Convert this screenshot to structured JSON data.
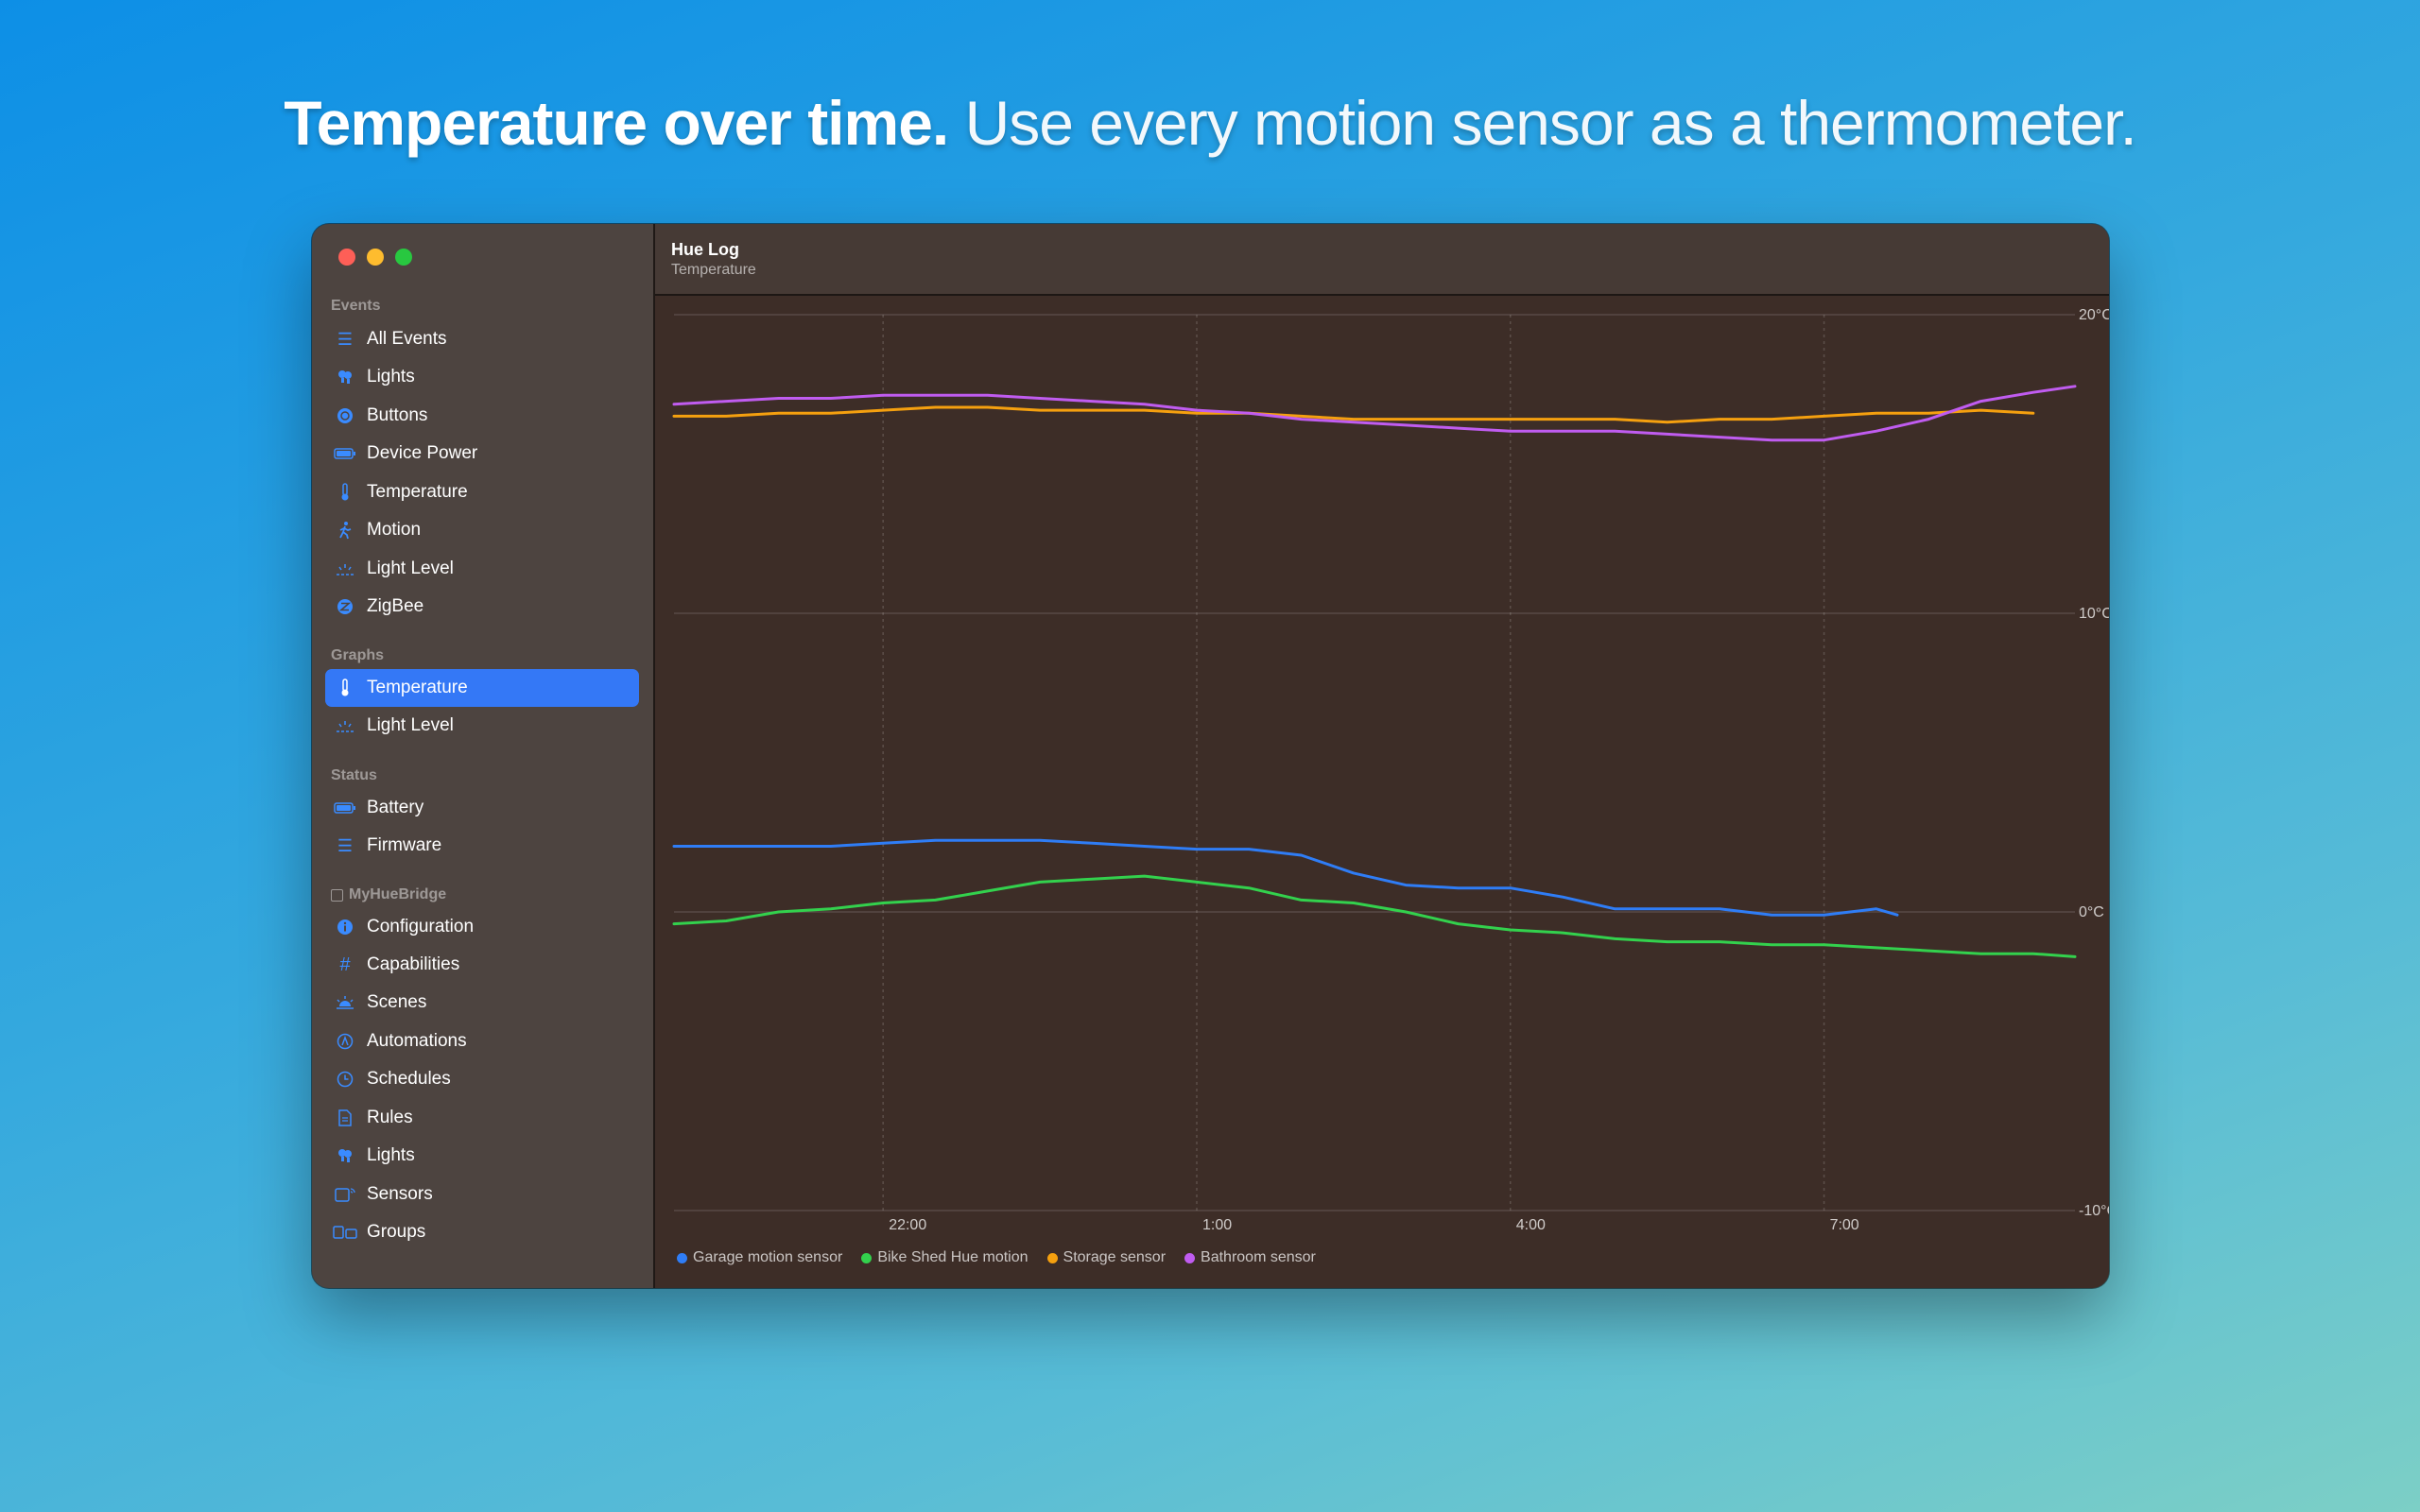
{
  "headline": {
    "bold": "Temperature over time.",
    "light": "Use every motion sensor as a thermometer."
  },
  "window": {
    "title": "Hue Log",
    "subtitle": "Temperature"
  },
  "sidebar": {
    "sections": [
      {
        "label": "Events",
        "items": [
          {
            "label": "All Events",
            "icon": "list-icon"
          },
          {
            "label": "Lights",
            "icon": "lightbulbs-icon"
          },
          {
            "label": "Buttons",
            "icon": "button-circle-icon"
          },
          {
            "label": "Device Power",
            "icon": "battery-icon"
          },
          {
            "label": "Temperature",
            "icon": "thermometer-icon"
          },
          {
            "label": "Motion",
            "icon": "walking-figure-icon"
          },
          {
            "label": "Light Level",
            "icon": "light-level-icon"
          },
          {
            "label": "ZigBee",
            "icon": "zigbee-icon"
          }
        ]
      },
      {
        "label": "Graphs",
        "items": [
          {
            "label": "Temperature",
            "icon": "thermometer-icon",
            "selected": true
          },
          {
            "label": "Light Level",
            "icon": "light-level-icon"
          }
        ]
      },
      {
        "label": "Status",
        "items": [
          {
            "label": "Battery",
            "icon": "battery-icon"
          },
          {
            "label": "Firmware",
            "icon": "list-icon"
          }
        ]
      },
      {
        "label": "MyHueBridge",
        "items": [
          {
            "label": "Configuration",
            "icon": "info-icon"
          },
          {
            "label": "Capabilities",
            "icon": "hash-icon"
          },
          {
            "label": "Scenes",
            "icon": "sunrise-icon"
          },
          {
            "label": "Automations",
            "icon": "automation-icon"
          },
          {
            "label": "Schedules",
            "icon": "clock-icon"
          },
          {
            "label": "Rules",
            "icon": "document-icon"
          },
          {
            "label": "Lights",
            "icon": "lightbulbs-icon"
          },
          {
            "label": "Sensors",
            "icon": "sensor-icon"
          },
          {
            "label": "Groups",
            "icon": "groups-icon"
          }
        ]
      }
    ]
  },
  "colors": {
    "garage": "#2f7df6",
    "bikeshed": "#33d14d",
    "storage": "#f5a00f",
    "bathroom": "#c05cf0",
    "accent": "#3478f6"
  },
  "chart_data": {
    "type": "line",
    "xlabel": "",
    "ylabel": "",
    "x_unit": "hours since 20:00 (axis clock time)",
    "xlim": [
      0,
      13.4
    ],
    "ylim": [
      -10,
      20
    ],
    "x_ticks": [
      {
        "label": "22:00",
        "value": 2
      },
      {
        "label": "1:00",
        "value": 5
      },
      {
        "label": "4:00",
        "value": 8
      },
      {
        "label": "7:00",
        "value": 11
      }
    ],
    "y_ticks": [
      {
        "label": "20°C",
        "value": 20
      },
      {
        "label": "10°C",
        "value": 10
      },
      {
        "label": "0°C",
        "value": 0
      },
      {
        "label": "-10°C",
        "value": -10
      }
    ],
    "grid": true,
    "legend_position": "bottom-left",
    "series": [
      {
        "name": "Garage motion sensor",
        "color": "#2f7df6",
        "x": [
          0.0,
          0.5,
          1.0,
          1.5,
          2.0,
          2.5,
          3.0,
          3.5,
          4.0,
          4.5,
          5.0,
          5.5,
          6.0,
          6.5,
          7.0,
          7.5,
          8.0,
          8.5,
          9.0,
          9.5,
          10.0,
          10.5,
          11.0,
          11.5,
          11.7
        ],
        "y": [
          2.2,
          2.2,
          2.2,
          2.2,
          2.3,
          2.4,
          2.4,
          2.4,
          2.3,
          2.2,
          2.1,
          2.1,
          1.9,
          1.3,
          0.9,
          0.8,
          0.8,
          0.5,
          0.1,
          0.1,
          0.1,
          -0.1,
          -0.1,
          0.1,
          -0.1
        ]
      },
      {
        "name": "Bike Shed Hue motion",
        "color": "#33d14d",
        "x": [
          0.0,
          0.5,
          1.0,
          1.5,
          2.0,
          2.5,
          3.0,
          3.5,
          4.0,
          4.5,
          5.0,
          5.5,
          6.0,
          6.5,
          7.0,
          7.5,
          8.0,
          8.5,
          9.0,
          9.5,
          10.0,
          10.5,
          11.0,
          11.5,
          12.0,
          12.5,
          13.0,
          13.4
        ],
        "y": [
          -0.4,
          -0.3,
          0.0,
          0.1,
          0.3,
          0.4,
          0.7,
          1.0,
          1.1,
          1.2,
          1.0,
          0.8,
          0.4,
          0.3,
          0.0,
          -0.4,
          -0.6,
          -0.7,
          -0.9,
          -1.0,
          -1.0,
          -1.1,
          -1.1,
          -1.2,
          -1.3,
          -1.4,
          -1.4,
          -1.5
        ]
      },
      {
        "name": "Storage sensor",
        "color": "#f5a00f",
        "x": [
          0.0,
          0.5,
          1.0,
          1.5,
          2.0,
          2.5,
          3.0,
          3.5,
          4.0,
          4.5,
          5.0,
          5.5,
          6.0,
          6.5,
          7.0,
          7.5,
          8.0,
          8.5,
          9.0,
          9.5,
          10.0,
          10.5,
          11.0,
          11.5,
          12.0,
          12.5,
          13.0
        ],
        "y": [
          16.6,
          16.6,
          16.7,
          16.7,
          16.8,
          16.9,
          16.9,
          16.8,
          16.8,
          16.8,
          16.7,
          16.7,
          16.6,
          16.5,
          16.5,
          16.5,
          16.5,
          16.5,
          16.5,
          16.4,
          16.5,
          16.5,
          16.6,
          16.7,
          16.7,
          16.8,
          16.7
        ]
      },
      {
        "name": "Bathroom sensor",
        "color": "#c05cf0",
        "x": [
          0.0,
          0.5,
          1.0,
          1.5,
          2.0,
          2.5,
          3.0,
          3.5,
          4.0,
          4.5,
          5.0,
          5.5,
          6.0,
          6.5,
          7.0,
          7.5,
          8.0,
          8.5,
          9.0,
          9.5,
          10.0,
          10.5,
          11.0,
          11.5,
          12.0,
          12.5,
          13.0,
          13.4
        ],
        "y": [
          17.0,
          17.1,
          17.2,
          17.2,
          17.3,
          17.3,
          17.3,
          17.2,
          17.1,
          17.0,
          16.8,
          16.7,
          16.5,
          16.4,
          16.3,
          16.2,
          16.1,
          16.1,
          16.1,
          16.0,
          15.9,
          15.8,
          15.8,
          16.1,
          16.5,
          17.1,
          17.4,
          17.6
        ]
      }
    ]
  }
}
